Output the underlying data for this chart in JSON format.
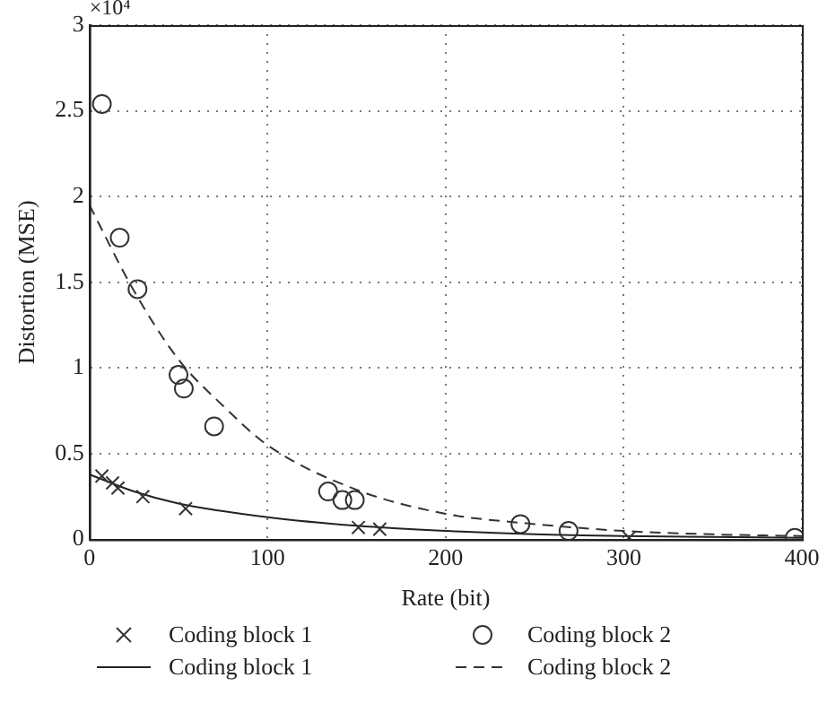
{
  "chart_data": {
    "type": "scatter",
    "xlabel": "Rate (bit)",
    "ylabel": "Distortion (MSE)",
    "annotations": [
      "×10⁴"
    ],
    "xlim": [
      0,
      400
    ],
    "xticks": [
      0,
      100,
      200,
      300,
      400
    ],
    "ylim": [
      0,
      3
    ],
    "yticks": [
      0,
      0.5,
      1,
      1.5,
      2,
      2.5,
      3
    ],
    "grid": true,
    "legend": "bottom",
    "series": [
      {
        "name": "Coding block 1",
        "type": "scatter",
        "marker": "cross",
        "color": "#333333",
        "x": [
          7,
          13,
          16,
          30,
          54,
          151,
          163,
          303
        ],
        "values": [
          0.37,
          0.33,
          0.3,
          0.25,
          0.18,
          0.07,
          0.06,
          0.01
        ]
      },
      {
        "name": "Coding block 2",
        "type": "scatter",
        "marker": "circle",
        "color": "#333333",
        "x": [
          7,
          17,
          27,
          50,
          53,
          70,
          134,
          142,
          149,
          242,
          269,
          396
        ],
        "values": [
          2.54,
          1.76,
          1.46,
          0.96,
          0.88,
          0.66,
          0.28,
          0.23,
          0.23,
          0.09,
          0.05,
          0.01
        ]
      },
      {
        "name": "Coding block 1",
        "type": "line",
        "marker": "none",
        "line_style": "solid",
        "color": "#222222",
        "x": [
          0,
          25,
          50,
          100,
          150,
          200,
          250,
          300,
          400
        ],
        "values": [
          0.38,
          0.28,
          0.21,
          0.13,
          0.08,
          0.05,
          0.03,
          0.02,
          0.01
        ]
      },
      {
        "name": "Coding block 2",
        "type": "line",
        "marker": "none",
        "line_style": "dashed",
        "color": "#333333",
        "x": [
          0,
          25,
          50,
          75,
          100,
          150,
          200,
          250,
          300,
          350,
          400
        ],
        "values": [
          1.95,
          1.45,
          1.05,
          0.78,
          0.55,
          0.29,
          0.15,
          0.09,
          0.05,
          0.03,
          0.02
        ]
      }
    ]
  }
}
